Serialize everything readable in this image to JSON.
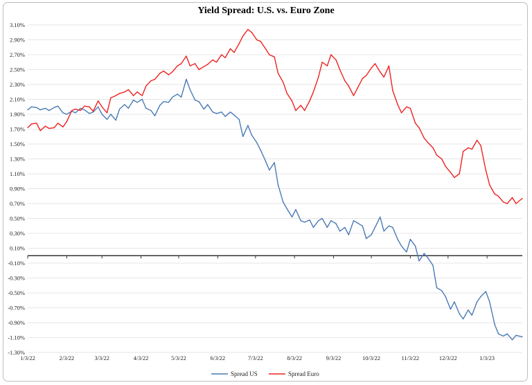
{
  "chart_data": {
    "type": "line",
    "title": "Yield Spread: U.S. vs. Euro Zone",
    "xlabel": "",
    "ylabel": "",
    "ylim": [
      -1.3,
      3.1
    ],
    "xlim": [
      "1/3/22",
      "1/31/23"
    ],
    "grid": "horizontal",
    "legend_position": "bottom",
    "y_ticks": [
      "3.10%",
      "2.90%",
      "2.70%",
      "2.50%",
      "2.30%",
      "2.10%",
      "1.90%",
      "1.70%",
      "1.50%",
      "1.30%",
      "1.10%",
      "0.90%",
      "0.70%",
      "0.50%",
      "0.30%",
      "0.10%",
      "-0.10%",
      "-0.30%",
      "-0.50%",
      "-0.70%",
      "-0.90%",
      "-1.10%",
      "-1.30%"
    ],
    "x_ticks": [
      "1/3/22",
      "2/3/22",
      "3/3/22",
      "4/3/22",
      "5/3/22",
      "6/3/22",
      "7/3/22",
      "8/3/22",
      "9/3/22",
      "10/3/22",
      "11/3/22",
      "12/3/22",
      "1/3/23"
    ],
    "series": [
      {
        "name": "Spread US",
        "color": "#4a7ab5",
        "points": [
          [
            "1/3/22",
            1.96
          ],
          [
            "1/6/22",
            2.0
          ],
          [
            "1/10/22",
            1.99
          ],
          [
            "1/13/22",
            1.96
          ],
          [
            "1/17/22",
            1.98
          ],
          [
            "1/20/22",
            1.95
          ],
          [
            "1/24/22",
            1.99
          ],
          [
            "1/27/22",
            2.01
          ],
          [
            "1/31/22",
            1.92
          ],
          [
            "2/3/22",
            1.9
          ],
          [
            "2/7/22",
            1.94
          ],
          [
            "2/10/22",
            1.92
          ],
          [
            "2/14/22",
            1.98
          ],
          [
            "2/17/22",
            1.96
          ],
          [
            "2/21/22",
            1.91
          ],
          [
            "2/24/22",
            1.93
          ],
          [
            "2/28/22",
            2.0
          ],
          [
            "3/3/22",
            1.9
          ],
          [
            "3/7/22",
            1.83
          ],
          [
            "3/10/22",
            1.9
          ],
          [
            "3/14/22",
            1.82
          ],
          [
            "3/17/22",
            1.97
          ],
          [
            "3/21/22",
            2.03
          ],
          [
            "3/24/22",
            1.98
          ],
          [
            "3/28/22",
            2.09
          ],
          [
            "3/31/22",
            2.06
          ],
          [
            "4/4/22",
            2.1
          ],
          [
            "4/7/22",
            1.98
          ],
          [
            "4/11/22",
            1.95
          ],
          [
            "4/14/22",
            1.88
          ],
          [
            "4/18/22",
            2.02
          ],
          [
            "4/21/22",
            2.07
          ],
          [
            "4/25/22",
            2.06
          ],
          [
            "4/28/22",
            2.13
          ],
          [
            "5/2/22",
            2.17
          ],
          [
            "5/5/22",
            2.13
          ],
          [
            "5/9/22",
            2.37
          ],
          [
            "5/12/22",
            2.23
          ],
          [
            "5/16/22",
            2.09
          ],
          [
            "5/19/22",
            2.07
          ],
          [
            "5/23/22",
            1.97
          ],
          [
            "5/26/22",
            2.03
          ],
          [
            "5/30/22",
            1.93
          ],
          [
            "6/2/22",
            1.91
          ],
          [
            "6/6/22",
            1.93
          ],
          [
            "6/9/22",
            1.87
          ],
          [
            "6/13/22",
            1.93
          ],
          [
            "6/16/22",
            1.89
          ],
          [
            "6/20/22",
            1.83
          ],
          [
            "6/23/22",
            1.6
          ],
          [
            "6/27/22",
            1.75
          ],
          [
            "6/30/22",
            1.62
          ],
          [
            "7/4/22",
            1.52
          ],
          [
            "7/7/22",
            1.42
          ],
          [
            "7/11/22",
            1.27
          ],
          [
            "7/14/22",
            1.15
          ],
          [
            "7/18/22",
            1.25
          ],
          [
            "7/21/22",
            0.95
          ],
          [
            "7/25/22",
            0.72
          ],
          [
            "7/28/22",
            0.63
          ],
          [
            "8/1/22",
            0.52
          ],
          [
            "8/4/22",
            0.62
          ],
          [
            "8/8/22",
            0.47
          ],
          [
            "8/11/22",
            0.45
          ],
          [
            "8/15/22",
            0.48
          ],
          [
            "8/18/22",
            0.38
          ],
          [
            "8/22/22",
            0.47
          ],
          [
            "8/25/22",
            0.5
          ],
          [
            "8/29/22",
            0.38
          ],
          [
            "9/1/22",
            0.47
          ],
          [
            "9/5/22",
            0.43
          ],
          [
            "9/8/22",
            0.33
          ],
          [
            "9/12/22",
            0.38
          ],
          [
            "9/15/22",
            0.28
          ],
          [
            "9/19/22",
            0.47
          ],
          [
            "9/22/22",
            0.44
          ],
          [
            "9/26/22",
            0.4
          ],
          [
            "9/29/22",
            0.23
          ],
          [
            "10/3/22",
            0.28
          ],
          [
            "10/6/22",
            0.38
          ],
          [
            "10/10/22",
            0.52
          ],
          [
            "10/13/22",
            0.33
          ],
          [
            "10/17/22",
            0.4
          ],
          [
            "10/20/22",
            0.38
          ],
          [
            "10/24/22",
            0.22
          ],
          [
            "10/27/22",
            0.13
          ],
          [
            "10/31/22",
            0.05
          ],
          [
            "11/3/22",
            0.22
          ],
          [
            "11/7/22",
            0.13
          ],
          [
            "11/10/22",
            -0.07
          ],
          [
            "11/14/22",
            0.03
          ],
          [
            "11/17/22",
            -0.03
          ],
          [
            "11/21/22",
            -0.13
          ],
          [
            "11/24/22",
            -0.43
          ],
          [
            "11/28/22",
            -0.47
          ],
          [
            "12/1/22",
            -0.55
          ],
          [
            "12/5/22",
            -0.72
          ],
          [
            "12/8/22",
            -0.62
          ],
          [
            "12/12/22",
            -0.78
          ],
          [
            "12/15/22",
            -0.85
          ],
          [
            "12/19/22",
            -0.73
          ],
          [
            "12/22/22",
            -0.8
          ],
          [
            "12/26/22",
            -0.62
          ],
          [
            "12/29/22",
            -0.55
          ],
          [
            "1/2/23",
            -0.48
          ],
          [
            "1/5/23",
            -0.62
          ],
          [
            "1/9/23",
            -0.92
          ],
          [
            "1/12/23",
            -1.05
          ],
          [
            "1/16/23",
            -1.08
          ],
          [
            "1/19/23",
            -1.05
          ],
          [
            "1/23/23",
            -1.13
          ],
          [
            "1/26/23",
            -1.07
          ],
          [
            "1/31/23",
            -1.09
          ]
        ]
      },
      {
        "name": "Spread Euro",
        "color": "#ee2222",
        "points": [
          [
            "1/3/22",
            1.72
          ],
          [
            "1/6/22",
            1.77
          ],
          [
            "1/10/22",
            1.78
          ],
          [
            "1/13/22",
            1.68
          ],
          [
            "1/17/22",
            1.74
          ],
          [
            "1/20/22",
            1.71
          ],
          [
            "1/24/22",
            1.72
          ],
          [
            "1/27/22",
            1.78
          ],
          [
            "1/31/22",
            1.73
          ],
          [
            "2/3/22",
            1.8
          ],
          [
            "2/7/22",
            1.95
          ],
          [
            "2/10/22",
            1.97
          ],
          [
            "2/14/22",
            1.95
          ],
          [
            "2/17/22",
            2.01
          ],
          [
            "2/21/22",
            2.0
          ],
          [
            "2/24/22",
            1.94
          ],
          [
            "2/28/22",
            2.08
          ],
          [
            "3/3/22",
            2.0
          ],
          [
            "3/7/22",
            1.92
          ],
          [
            "3/10/22",
            2.12
          ],
          [
            "3/14/22",
            2.15
          ],
          [
            "3/17/22",
            2.18
          ],
          [
            "3/21/22",
            2.2
          ],
          [
            "3/24/22",
            2.23
          ],
          [
            "3/28/22",
            2.15
          ],
          [
            "3/31/22",
            2.2
          ],
          [
            "4/4/22",
            2.15
          ],
          [
            "4/7/22",
            2.28
          ],
          [
            "4/11/22",
            2.35
          ],
          [
            "4/14/22",
            2.37
          ],
          [
            "4/18/22",
            2.45
          ],
          [
            "4/21/22",
            2.48
          ],
          [
            "4/25/22",
            2.43
          ],
          [
            "4/28/22",
            2.47
          ],
          [
            "5/2/22",
            2.55
          ],
          [
            "5/5/22",
            2.58
          ],
          [
            "5/9/22",
            2.68
          ],
          [
            "5/12/22",
            2.55
          ],
          [
            "5/16/22",
            2.58
          ],
          [
            "5/19/22",
            2.5
          ],
          [
            "5/23/22",
            2.54
          ],
          [
            "5/26/22",
            2.57
          ],
          [
            "5/30/22",
            2.63
          ],
          [
            "6/2/22",
            2.6
          ],
          [
            "6/6/22",
            2.7
          ],
          [
            "6/9/22",
            2.66
          ],
          [
            "6/13/22",
            2.78
          ],
          [
            "6/16/22",
            2.73
          ],
          [
            "6/20/22",
            2.85
          ],
          [
            "6/23/22",
            2.95
          ],
          [
            "6/27/22",
            3.04
          ],
          [
            "6/30/22",
            3.0
          ],
          [
            "7/4/22",
            2.9
          ],
          [
            "7/7/22",
            2.88
          ],
          [
            "7/11/22",
            2.78
          ],
          [
            "7/14/22",
            2.7
          ],
          [
            "7/18/22",
            2.67
          ],
          [
            "7/21/22",
            2.45
          ],
          [
            "7/25/22",
            2.33
          ],
          [
            "7/28/22",
            2.18
          ],
          [
            "8/1/22",
            2.08
          ],
          [
            "8/4/22",
            1.95
          ],
          [
            "8/8/22",
            2.02
          ],
          [
            "8/11/22",
            1.95
          ],
          [
            "8/15/22",
            2.08
          ],
          [
            "8/18/22",
            2.2
          ],
          [
            "8/22/22",
            2.4
          ],
          [
            "8/25/22",
            2.6
          ],
          [
            "8/29/22",
            2.55
          ],
          [
            "9/1/22",
            2.7
          ],
          [
            "9/5/22",
            2.63
          ],
          [
            "9/8/22",
            2.5
          ],
          [
            "9/12/22",
            2.35
          ],
          [
            "9/15/22",
            2.28
          ],
          [
            "9/19/22",
            2.15
          ],
          [
            "9/22/22",
            2.25
          ],
          [
            "9/26/22",
            2.38
          ],
          [
            "9/29/22",
            2.42
          ],
          [
            "10/3/22",
            2.52
          ],
          [
            "10/6/22",
            2.58
          ],
          [
            "10/10/22",
            2.47
          ],
          [
            "10/13/22",
            2.4
          ],
          [
            "10/17/22",
            2.55
          ],
          [
            "10/20/22",
            2.22
          ],
          [
            "10/24/22",
            2.03
          ],
          [
            "10/27/22",
            1.92
          ],
          [
            "10/31/22",
            2.0
          ],
          [
            "11/3/22",
            1.98
          ],
          [
            "11/7/22",
            1.78
          ],
          [
            "11/10/22",
            1.72
          ],
          [
            "11/14/22",
            1.58
          ],
          [
            "11/17/22",
            1.52
          ],
          [
            "11/21/22",
            1.45
          ],
          [
            "11/24/22",
            1.35
          ],
          [
            "11/28/22",
            1.3
          ],
          [
            "12/1/22",
            1.2
          ],
          [
            "12/5/22",
            1.12
          ],
          [
            "12/8/22",
            1.05
          ],
          [
            "12/12/22",
            1.1
          ],
          [
            "12/15/22",
            1.4
          ],
          [
            "12/19/22",
            1.45
          ],
          [
            "12/22/22",
            1.43
          ],
          [
            "12/26/22",
            1.55
          ],
          [
            "12/29/22",
            1.48
          ],
          [
            "1/2/23",
            1.15
          ],
          [
            "1/5/23",
            0.95
          ],
          [
            "1/9/23",
            0.83
          ],
          [
            "1/12/23",
            0.8
          ],
          [
            "1/16/23",
            0.72
          ],
          [
            "1/19/23",
            0.7
          ],
          [
            "1/23/23",
            0.78
          ],
          [
            "1/26/23",
            0.7
          ],
          [
            "1/31/23",
            0.77
          ]
        ]
      }
    ]
  }
}
